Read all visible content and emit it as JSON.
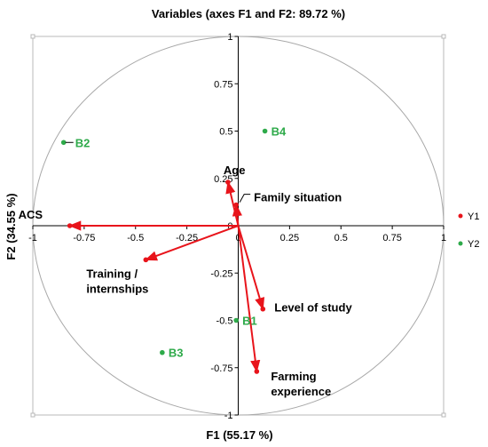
{
  "chart_data": {
    "type": "scatter",
    "title": "Variables (axes F1 and F2: 89.72 %)",
    "xlabel": "F1 (55.17 %)",
    "ylabel": "F2 (34.55 %)",
    "xlim": [
      -1,
      1
    ],
    "ylim": [
      -1,
      1
    ],
    "x_ticks": [
      "-1",
      "-0.75",
      "-0.5",
      "-0.25",
      "0",
      "0.25",
      "0.5",
      "0.75",
      "1"
    ],
    "y_ticks": [
      "1",
      "0.75",
      "0.5",
      "0.25",
      "0",
      "-0.25",
      "-0.5",
      "-0.75",
      "-1"
    ],
    "correlation_circle": true,
    "colors": {
      "variables": "#e8141b",
      "observations": "#2eaa4a"
    },
    "series": [
      {
        "name": "Y1",
        "kind": "vectors",
        "points": [
          {
            "label": "ACS",
            "x": -0.82,
            "y": 0.0
          },
          {
            "label": "Age",
            "x": -0.05,
            "y": 0.23
          },
          {
            "label": "Family situation",
            "x": -0.01,
            "y": 0.11
          },
          {
            "label": "Training / internships",
            "x": -0.45,
            "y": -0.18
          },
          {
            "label": "Level of study",
            "x": 0.12,
            "y": -0.44
          },
          {
            "label": "Farming experience",
            "x": 0.09,
            "y": -0.77
          }
        ]
      },
      {
        "name": "Y2",
        "kind": "points",
        "points": [
          {
            "label": "B1",
            "x": -0.01,
            "y": -0.5
          },
          {
            "label": "B2",
            "x": -0.85,
            "y": 0.44
          },
          {
            "label": "B3",
            "x": -0.37,
            "y": -0.67
          },
          {
            "label": "B4",
            "x": 0.13,
            "y": 0.5
          }
        ]
      }
    ]
  }
}
